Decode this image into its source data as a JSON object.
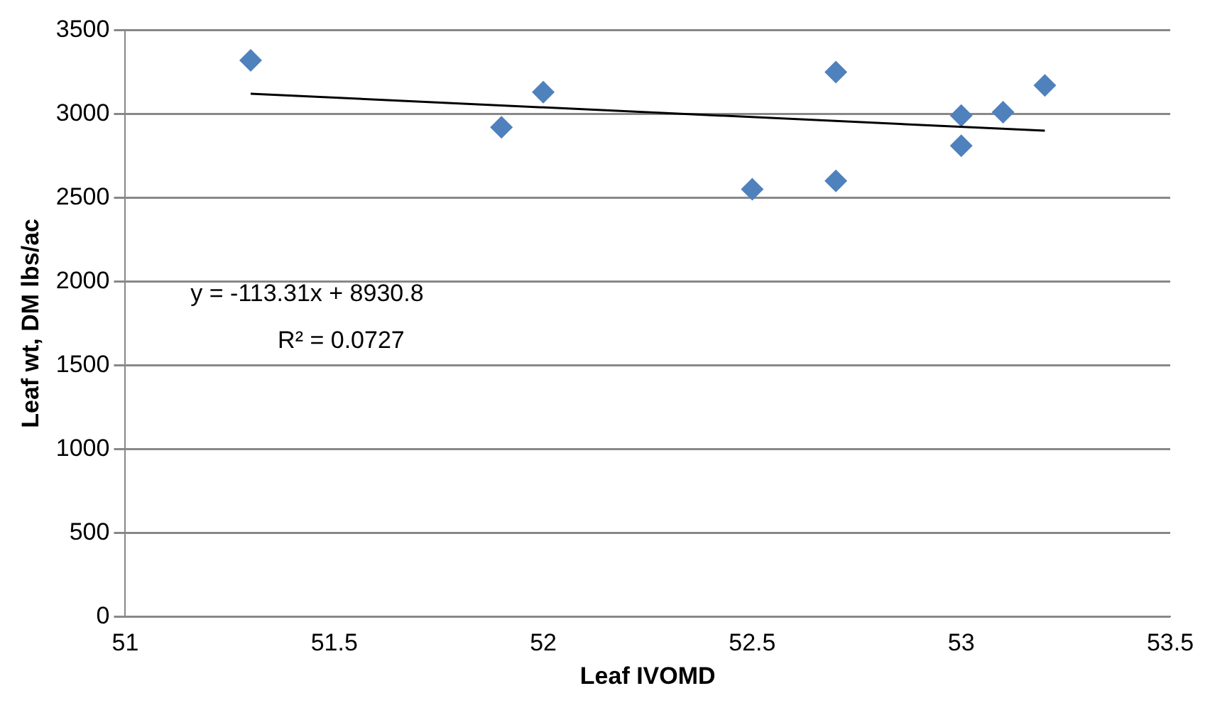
{
  "chart_data": {
    "type": "scatter",
    "xlabel": "Leaf IVOMD",
    "ylabel": "Leaf wt, DM lbs/ac",
    "xlim": [
      51,
      53.5
    ],
    "xticks": [
      51,
      51.5,
      52,
      52.5,
      53,
      53.5
    ],
    "ylim": [
      0,
      3500
    ],
    "yticks": [
      0,
      500,
      1000,
      1500,
      2000,
      2500,
      3000,
      3500
    ],
    "grid": "y",
    "legend": false,
    "series": [
      {
        "type": "scatter",
        "color": "#4f81bd",
        "marker": "diamond",
        "x": [
          51.3,
          51.9,
          52.0,
          52.5,
          52.7,
          52.7,
          53.0,
          53.0,
          53.1,
          53.2
        ],
        "values": [
          3320,
          2920,
          3130,
          2550,
          3250,
          2600,
          2990,
          2810,
          3010,
          3170
        ]
      },
      {
        "type": "line",
        "color": "#000000",
        "marker": "none",
        "line_style": "solid",
        "x": [
          51.3,
          53.2
        ],
        "values": [
          3120,
          2900
        ]
      }
    ],
    "annotations": [
      "y = -113.31x + 8930.8",
      "R² = 0.0727"
    ]
  }
}
